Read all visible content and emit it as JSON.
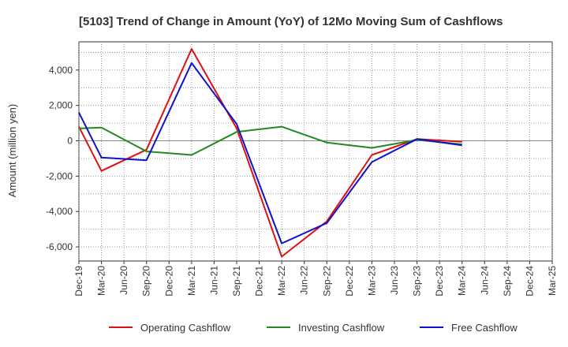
{
  "chart_data": {
    "type": "line",
    "title": "[5103]  Trend of Change in Amount (YoY) of 12Mo Moving Sum of Cashflows",
    "xlabel": "",
    "ylabel": "Amount (million yen)",
    "ylim": [
      -6800,
      5600
    ],
    "yticks": [
      -6000,
      -4000,
      -2000,
      0,
      2000,
      4000
    ],
    "ytick_labels": [
      "-6,000",
      "-4,000",
      "-2,000",
      "0",
      "2,000",
      "4,000"
    ],
    "categories": [
      "Dec-19",
      "Mar-20",
      "Jun-20",
      "Sep-20",
      "Dec-20",
      "Mar-21",
      "Jun-21",
      "Sep-21",
      "Dec-21",
      "Mar-22",
      "Jun-22",
      "Sep-22",
      "Dec-22",
      "Mar-23",
      "Jun-23",
      "Sep-23",
      "Dec-23",
      "Mar-24",
      "Jun-24",
      "Sep-24",
      "Dec-24",
      "Mar-25"
    ],
    "grid": true,
    "legend": "bottom",
    "series": [
      {
        "name": "Operating Cashflow",
        "color": "#dd1111",
        "values": [
          800,
          -1700,
          null,
          -500,
          null,
          5200,
          null,
          700,
          null,
          -6550,
          null,
          -4550,
          null,
          -800,
          null,
          100,
          null,
          -50,
          null,
          null,
          null,
          null
        ]
      },
      {
        "name": "Investing Cashflow",
        "color": "#228822",
        "values": [
          700,
          750,
          null,
          -600,
          null,
          -800,
          null,
          500,
          null,
          800,
          null,
          -100,
          null,
          -400,
          null,
          50,
          null,
          -200,
          null,
          null,
          null,
          null
        ]
      },
      {
        "name": "Free Cashflow",
        "color": "#1111cc",
        "values": [
          1600,
          -950,
          null,
          -1100,
          null,
          4400,
          null,
          950,
          null,
          -5800,
          null,
          -4650,
          null,
          -1200,
          null,
          100,
          null,
          -250,
          null,
          null,
          null,
          null
        ]
      }
    ]
  }
}
